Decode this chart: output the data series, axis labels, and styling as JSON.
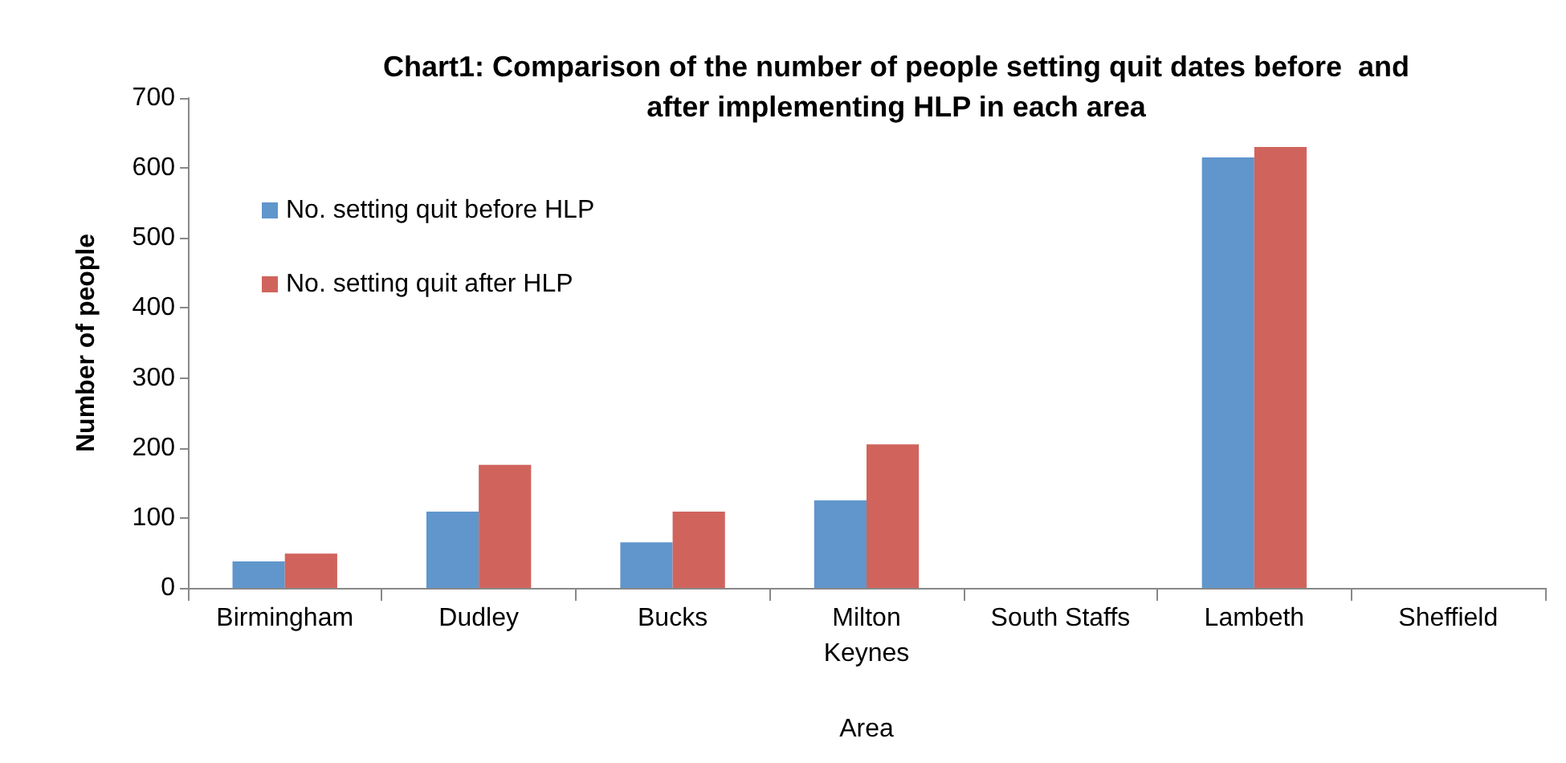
{
  "chart_data": {
    "type": "bar",
    "title": "Chart1: Comparison of the number of people setting quit dates before  and\nafter implementing HLP in each area",
    "xlabel": "Area",
    "ylabel": "Number of people",
    "categories": [
      "Birmingham",
      "Dudley",
      "Bucks",
      "Milton\nKeynes",
      "South Staffs",
      "Lambeth",
      "Sheffield"
    ],
    "series": [
      {
        "name": "No. setting quit before HLP",
        "color": "#6096cc",
        "values": [
          38,
          109,
          65,
          125,
          null,
          615,
          null
        ]
      },
      {
        "name": "No. setting quit after HLP",
        "color": "#d0645c",
        "values": [
          49,
          176,
          109,
          205,
          null,
          630,
          null
        ]
      }
    ],
    "ylim": [
      0,
      700
    ],
    "yticks": [
      0,
      100,
      200,
      300,
      400,
      500,
      600,
      700
    ],
    "grid": false,
    "legend": "top left"
  }
}
